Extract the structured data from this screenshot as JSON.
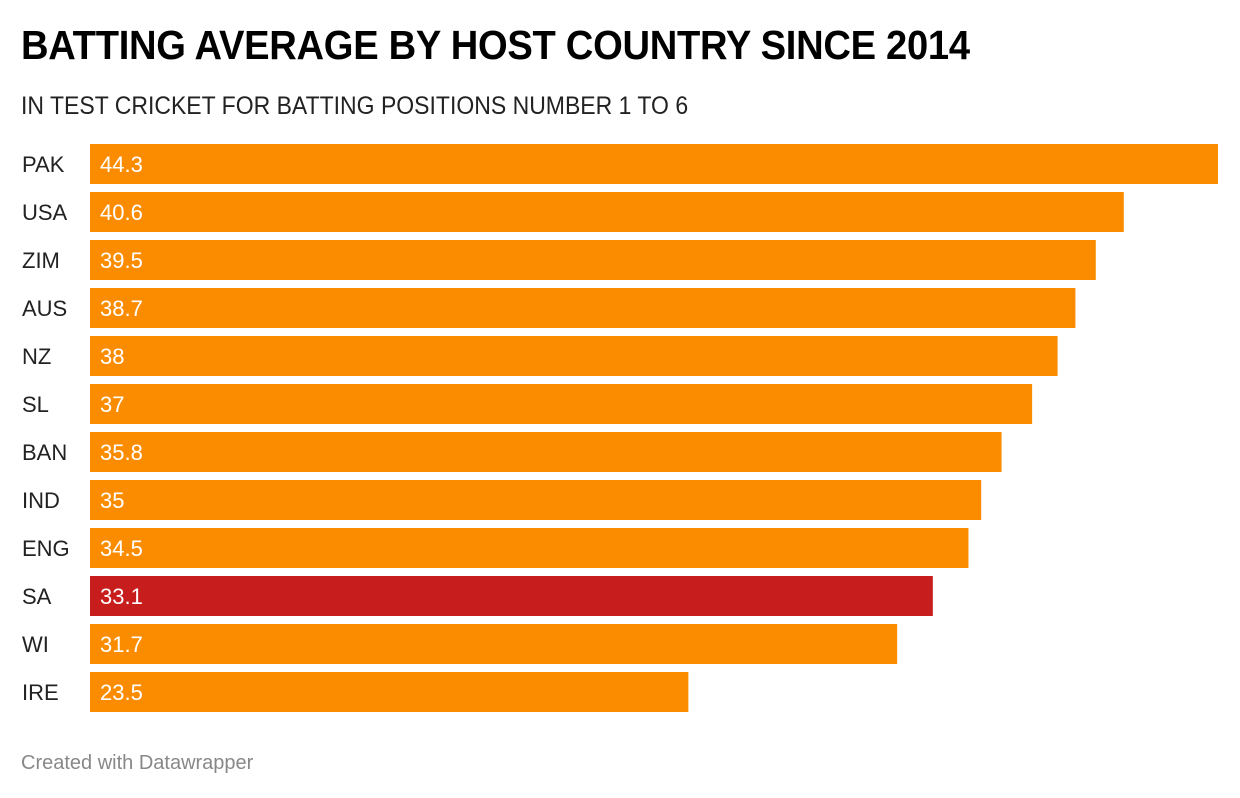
{
  "header": {
    "title": "BATTING AVERAGE BY HOST COUNTRY SINCE 2014",
    "subtitle": "IN TEST CRICKET FOR BATTING POSITIONS NUMBER 1 TO 6"
  },
  "footer": {
    "credit": "Created with Datawrapper"
  },
  "colors": {
    "bar_default": "#fb8c00",
    "bar_highlight": "#c71e1d",
    "label_text": "#ffffff",
    "category_text": "#222222"
  },
  "chart_data": {
    "type": "bar",
    "orientation": "horizontal",
    "title": "BATTING AVERAGE BY HOST COUNTRY SINCE 2014",
    "subtitle": "IN TEST CRICKET FOR BATTING POSITIONS NUMBER 1 TO 6",
    "xlabel": "",
    "ylabel": "",
    "categories": [
      "PAK",
      "USA",
      "ZIM",
      "AUS",
      "NZ",
      "SL",
      "BAN",
      "IND",
      "ENG",
      "SA",
      "WI",
      "IRE"
    ],
    "values": [
      44.3,
      40.6,
      39.5,
      38.7,
      38,
      37,
      35.8,
      35,
      34.5,
      33.1,
      31.7,
      23.5
    ],
    "value_labels": [
      "44.3",
      "40.6",
      "39.5",
      "38.7",
      "38",
      "37",
      "35.8",
      "35",
      "34.5",
      "33.1",
      "31.7",
      "23.5"
    ],
    "highlighted": [
      "SA"
    ],
    "xlim": [
      0,
      44.3
    ],
    "grid": false,
    "legend": "none"
  }
}
